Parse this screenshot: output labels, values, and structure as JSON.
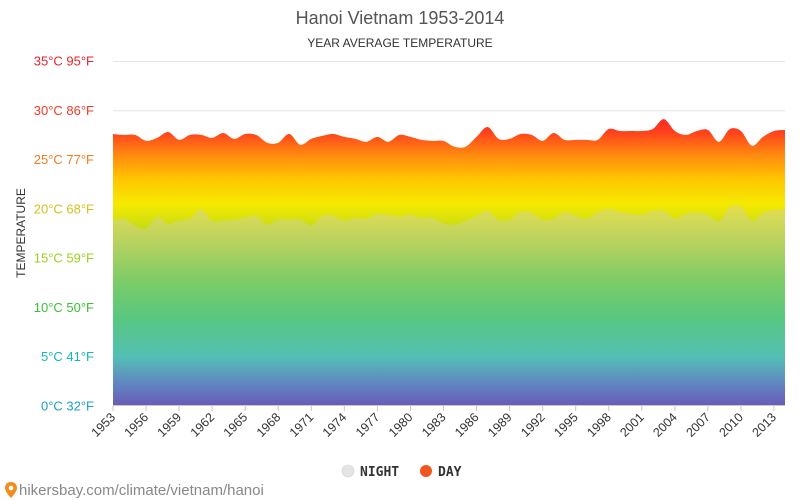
{
  "chart_data": {
    "type": "area",
    "title": "Hanoi Vietnam 1953-2014",
    "subtitle": "YEAR AVERAGE TEMPERATURE",
    "ylabel": "TEMPERATURE",
    "ylim": [
      0,
      35
    ],
    "y_ticks": [
      {
        "value": 0,
        "label": "0°C 32°F",
        "color": "#1ea0c8"
      },
      {
        "value": 5,
        "label": "5°C 41°F",
        "color": "#12b8b0"
      },
      {
        "value": 10,
        "label": "10°C 50°F",
        "color": "#39c235"
      },
      {
        "value": 15,
        "label": "15°C 59°F",
        "color": "#9ccf1f"
      },
      {
        "value": 20,
        "label": "20°C 68°F",
        "color": "#d2c21a"
      },
      {
        "value": 25,
        "label": "25°C 77°F",
        "color": "#f47a1e"
      },
      {
        "value": 30,
        "label": "30°C 86°F",
        "color": "#f03a26"
      },
      {
        "value": 35,
        "label": "35°C 95°F",
        "color": "#e8222a"
      }
    ],
    "x_tick_labels": [
      "1953",
      "1956",
      "1959",
      "1962",
      "1965",
      "1968",
      "1971",
      "1974",
      "1977",
      "1980",
      "1983",
      "1986",
      "1989",
      "1992",
      "1995",
      "1998",
      "2001",
      "2004",
      "2007",
      "2010",
      "2013"
    ],
    "x": [
      1953,
      1954,
      1955,
      1956,
      1957,
      1958,
      1959,
      1960,
      1961,
      1962,
      1963,
      1964,
      1965,
      1966,
      1967,
      1968,
      1969,
      1970,
      1971,
      1972,
      1973,
      1974,
      1975,
      1976,
      1977,
      1978,
      1979,
      1980,
      1981,
      1982,
      1983,
      1984,
      1985,
      1986,
      1987,
      1988,
      1989,
      1990,
      1991,
      1992,
      1993,
      1994,
      1995,
      1996,
      1997,
      1998,
      1999,
      2000,
      2001,
      2002,
      2003,
      2004,
      2005,
      2006,
      2007,
      2008,
      2009,
      2010,
      2011,
      2012,
      2013,
      2014
    ],
    "series": [
      {
        "name": "DAY",
        "values": [
          27.6,
          27.5,
          27.5,
          26.9,
          27.2,
          27.8,
          27.0,
          27.5,
          27.5,
          27.2,
          27.7,
          27.1,
          27.6,
          27.5,
          26.7,
          26.7,
          27.6,
          26.5,
          27.1,
          27.4,
          27.6,
          27.3,
          27.1,
          26.8,
          27.3,
          26.8,
          27.5,
          27.3,
          27.0,
          26.9,
          26.9,
          26.3,
          26.3,
          27.3,
          28.3,
          27.1,
          27.1,
          27.6,
          27.5,
          26.9,
          27.7,
          27.0,
          27.0,
          27.0,
          27.0,
          28.1,
          27.9,
          27.9,
          27.9,
          28.1,
          29.1,
          27.9,
          27.5,
          27.9,
          28.0,
          26.8,
          28.1,
          27.9,
          26.4,
          27.3,
          27.9,
          28.0
        ]
      },
      {
        "name": "NIGHT",
        "values": [
          18.8,
          19.0,
          18.3,
          18.0,
          19.2,
          18.5,
          18.8,
          19.0,
          20.0,
          18.8,
          18.8,
          18.9,
          19.1,
          19.3,
          18.4,
          18.9,
          18.9,
          18.9,
          18.3,
          19.3,
          19.3,
          18.8,
          19.1,
          19.0,
          19.5,
          19.4,
          19.2,
          19.4,
          19.1,
          19.1,
          18.5,
          18.4,
          18.8,
          19.3,
          19.8,
          18.9,
          18.9,
          19.7,
          19.6,
          18.9,
          19.0,
          19.7,
          19.3,
          19.0,
          19.7,
          20.0,
          19.7,
          19.5,
          19.4,
          19.8,
          19.8,
          19.0,
          19.5,
          19.6,
          19.4,
          18.7,
          20.2,
          20.2,
          18.8,
          19.6,
          19.9,
          19.9
        ]
      }
    ],
    "legend": {
      "position": "bottom-center",
      "items": [
        {
          "name": "NIGHT",
          "color": "#e4e4e4"
        },
        {
          "name": "DAY",
          "color": "#f0561e"
        }
      ]
    },
    "grid": true,
    "gradient_stops": [
      {
        "value": 0,
        "color": "#2b14a8"
      },
      {
        "value": 2,
        "color": "#1f52b8"
      },
      {
        "value": 5,
        "color": "#0ab8a6"
      },
      {
        "value": 9,
        "color": "#12c450"
      },
      {
        "value": 13,
        "color": "#52cc26"
      },
      {
        "value": 17,
        "color": "#b4d61c"
      },
      {
        "value": 20.5,
        "color": "#f5ea00"
      },
      {
        "value": 23,
        "color": "#ffc600"
      },
      {
        "value": 25.5,
        "color": "#ff8a10"
      },
      {
        "value": 28,
        "color": "#ff3a1e"
      },
      {
        "value": 29.5,
        "color": "#f02828"
      }
    ]
  },
  "source_text": "hikersbay.com/climate/vietnam/hanoi",
  "colors": {
    "title": "#555555",
    "grid": "#e6e6e6",
    "night_overlay": "rgba(205,205,205,0.38)",
    "pin": "#f28c1c"
  }
}
